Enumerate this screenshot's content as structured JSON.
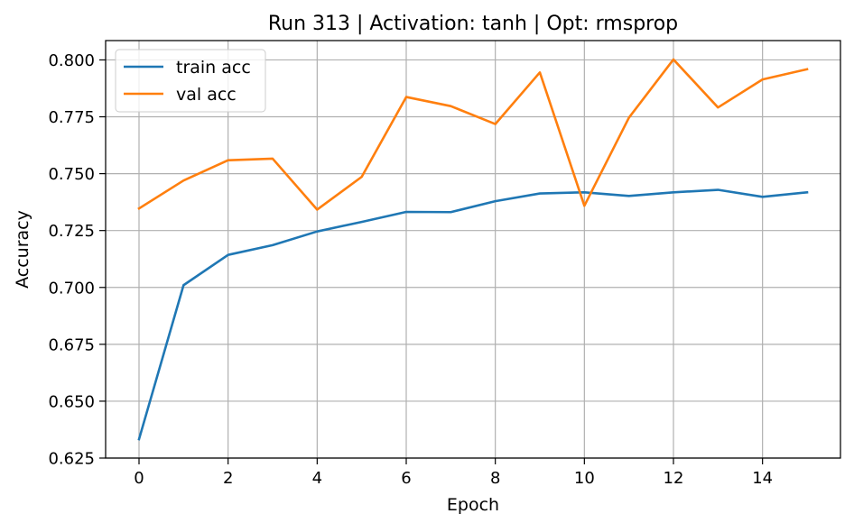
{
  "chart_data": {
    "type": "line",
    "title": "Run 313 | Activation: tanh | Opt: rmsprop",
    "xlabel": "Epoch",
    "ylabel": "Accuracy",
    "x": [
      0,
      1,
      2,
      3,
      4,
      5,
      6,
      7,
      8,
      9,
      10,
      11,
      12,
      13,
      14,
      15
    ],
    "xlim": [
      -0.75,
      15.75
    ],
    "ylim": [
      0.625,
      0.8085
    ],
    "xticks": [
      0,
      2,
      4,
      6,
      8,
      10,
      12,
      14
    ],
    "xtick_labels": [
      "0",
      "2",
      "4",
      "6",
      "8",
      "10",
      "12",
      "14"
    ],
    "yticks": [
      0.625,
      0.65,
      0.675,
      0.7,
      0.725,
      0.75,
      0.775,
      0.8
    ],
    "ytick_labels": [
      "0.625",
      "0.650",
      "0.675",
      "0.700",
      "0.725",
      "0.750",
      "0.775",
      "0.800"
    ],
    "grid": true,
    "legend_position": "top-left",
    "series": [
      {
        "name": "train acc",
        "color": "#1f77b4",
        "values": [
          0.6333,
          0.701,
          0.7143,
          0.7186,
          0.7246,
          0.7288,
          0.7332,
          0.7331,
          0.7379,
          0.7413,
          0.7418,
          0.7402,
          0.7418,
          0.7429,
          0.7398,
          0.7418
        ]
      },
      {
        "name": "val acc",
        "color": "#ff7f0e",
        "values": [
          0.7347,
          0.747,
          0.7559,
          0.7566,
          0.7342,
          0.7486,
          0.7837,
          0.7797,
          0.7718,
          0.7945,
          0.7359,
          0.7746,
          0.8002,
          0.7791,
          0.7914,
          0.7959
        ]
      }
    ]
  }
}
